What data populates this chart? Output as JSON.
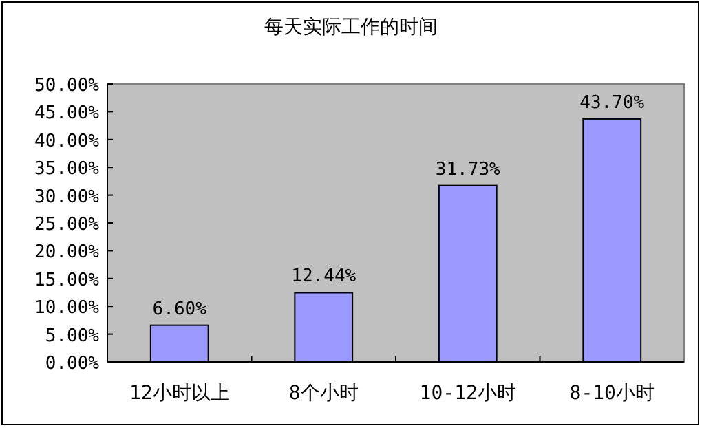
{
  "chart_data": {
    "type": "bar",
    "title": "每天实际工作的时间",
    "categories": [
      "12小时以上",
      "8个小时",
      "10-12小时",
      "8-10小时"
    ],
    "values": [
      6.6,
      12.44,
      31.73,
      43.7
    ],
    "value_labels": [
      "6.60%",
      "12.44%",
      "31.73%",
      "43.70%"
    ],
    "color": "#9999ff",
    "ylim": [
      0,
      50
    ],
    "yticks": [
      {
        "value": 0,
        "label": "0.00%"
      },
      {
        "value": 5,
        "label": "5.00%"
      },
      {
        "value": 10,
        "label": "10.00%"
      },
      {
        "value": 15,
        "label": "15.00%"
      },
      {
        "value": 20,
        "label": "20.00%"
      },
      {
        "value": 25,
        "label": "25.00%"
      },
      {
        "value": 30,
        "label": "30.00%"
      },
      {
        "value": 35,
        "label": "35.00%"
      },
      {
        "value": 40,
        "label": "40.00%"
      },
      {
        "value": 45,
        "label": "45.00%"
      },
      {
        "value": 50,
        "label": "50.00%"
      }
    ]
  }
}
